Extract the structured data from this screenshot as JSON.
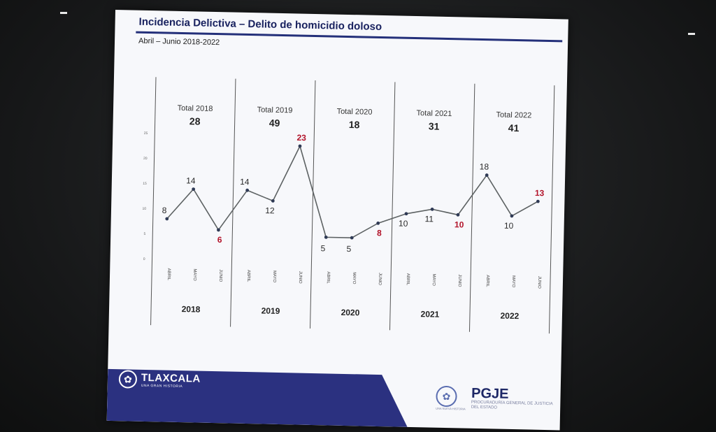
{
  "slide": {
    "title": "Incidencia Delictiva – Delito de homicidio doloso",
    "subtitle": "Abril – Junio 2018-2022"
  },
  "chart_data": {
    "type": "line",
    "ylim": [
      0,
      25
    ],
    "yticks": [
      "0",
      "5",
      "10",
      "15",
      "20",
      "25"
    ],
    "groups": [
      {
        "year": "2018",
        "total_label": "Total 2018",
        "total": "28",
        "months": [
          "ABRIL",
          "MAYO",
          "JUNIO"
        ],
        "values": [
          8,
          14,
          6
        ],
        "red": [
          false,
          false,
          true
        ]
      },
      {
        "year": "2019",
        "total_label": "Total 2019",
        "total": "49",
        "months": [
          "ABRIL",
          "MAYO",
          "JUNIO"
        ],
        "values": [
          14,
          12,
          23
        ],
        "red": [
          false,
          false,
          true
        ]
      },
      {
        "year": "2020",
        "total_label": "Total 2020",
        "total": "18",
        "months": [
          "ABRIL",
          "MAYO",
          "JUNIO"
        ],
        "values": [
          5,
          5,
          8
        ],
        "red": [
          false,
          false,
          true
        ]
      },
      {
        "year": "2021",
        "total_label": "Total 2021",
        "total": "31",
        "months": [
          "ABRIL",
          "MAYO",
          "JUNIO"
        ],
        "values": [
          10,
          11,
          10
        ],
        "red": [
          false,
          false,
          true
        ]
      },
      {
        "year": "2022",
        "total_label": "Total 2022",
        "total": "41",
        "months": [
          "ABRIL",
          "MAYO",
          "JUNIO"
        ],
        "values": [
          18,
          10,
          13
        ],
        "red": [
          false,
          false,
          true
        ]
      }
    ],
    "line_color": "#5d6263",
    "label_color": "#2a2a2a",
    "highlight_color": "#b2132a"
  },
  "footer": {
    "left_name": "TLAXCALA",
    "left_tag": "UNA GRAN HISTORIA",
    "right_name": "PGJE",
    "right_sub": "PROCURADURÍA GENERAL DE JUSTICIA DEL ESTADO",
    "right_tag": "UNA NUEVA HISTORIA",
    "band_color": "#2b3180"
  }
}
